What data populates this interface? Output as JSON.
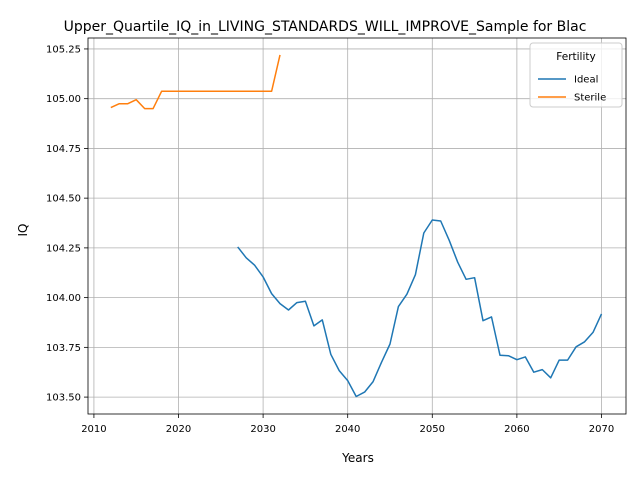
{
  "chart_data": {
    "type": "line",
    "title": "Upper_Quartile_IQ_in_LIVING_STANDARDS_WILL_IMPROVE_Sample for Blac",
    "xlabel": "Years",
    "ylabel": "IQ",
    "xlim": [
      2009.3,
      2072.9
    ],
    "ylim": [
      103.415,
      105.305
    ],
    "xticks": [
      2010,
      2020,
      2030,
      2040,
      2050,
      2060,
      2070
    ],
    "xtick_labels": [
      "2010",
      "2020",
      "2030",
      "2040",
      "2050",
      "2060",
      "2070"
    ],
    "yticks": [
      103.5,
      103.75,
      104.0,
      104.25,
      104.5,
      104.75,
      105.0,
      105.25
    ],
    "ytick_labels": [
      "103.50",
      "103.75",
      "104.00",
      "104.25",
      "104.50",
      "104.75",
      "105.00",
      "105.25"
    ],
    "grid": true,
    "legend": {
      "title": "Fertility",
      "placement": "upper right"
    },
    "series": [
      {
        "name": "Ideal",
        "color": "#1f77b4",
        "x": [
          2027,
          2028,
          2029,
          2030,
          2031,
          2032,
          2033,
          2034,
          2035,
          2036,
          2037,
          2038,
          2039,
          2040,
          2041,
          2042,
          2043,
          2044,
          2045,
          2046,
          2047,
          2048,
          2049,
          2050,
          2051,
          2052,
          2053,
          2054,
          2055,
          2056,
          2057,
          2058,
          2059,
          2060,
          2061,
          2062,
          2063,
          2064,
          2065,
          2066,
          2067,
          2068,
          2069,
          2070
        ],
        "y": [
          104.255,
          104.2,
          104.163,
          104.104,
          104.02,
          103.97,
          103.938,
          103.975,
          103.982,
          103.858,
          103.888,
          103.715,
          103.633,
          103.583,
          103.503,
          103.525,
          103.578,
          103.675,
          103.767,
          103.955,
          104.017,
          104.115,
          104.325,
          104.39,
          104.385,
          104.288,
          104.178,
          104.092,
          104.1,
          103.884,
          103.903,
          103.71,
          103.708,
          103.688,
          103.702,
          103.625,
          103.638,
          103.597,
          103.686,
          103.686,
          103.753,
          103.778,
          103.825,
          103.918
        ]
      },
      {
        "name": "Sterile",
        "color": "#ff7f0e",
        "x": [
          2012,
          2013,
          2014,
          2015,
          2016,
          2017,
          2018,
          2019,
          2020,
          2021,
          2022,
          2023,
          2024,
          2025,
          2026,
          2027,
          2028,
          2029,
          2030,
          2031,
          2032
        ],
        "y": [
          104.955,
          104.975,
          104.975,
          104.995,
          104.95,
          104.95,
          105.037,
          105.037,
          105.037,
          105.037,
          105.037,
          105.037,
          105.037,
          105.037,
          105.037,
          105.037,
          105.037,
          105.037,
          105.037,
          105.037,
          105.22
        ]
      }
    ]
  }
}
